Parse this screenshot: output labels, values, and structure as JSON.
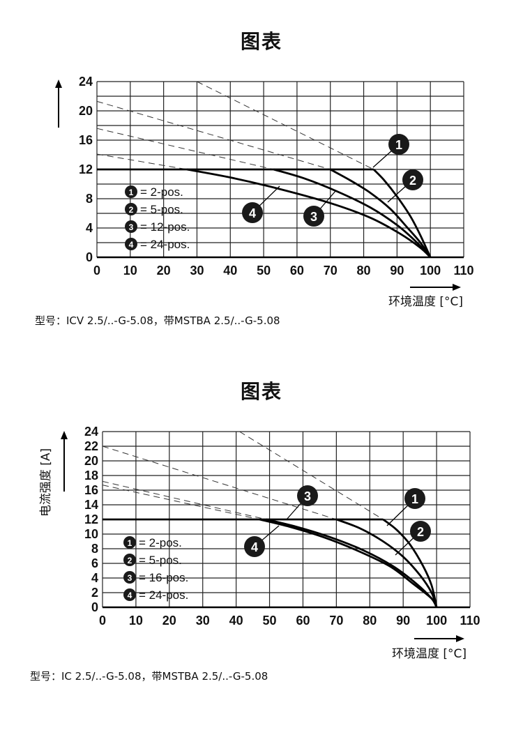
{
  "chart_data": [
    {
      "type": "line",
      "title": "图表",
      "xlabel": "环境温度 [°C]",
      "ylabel": "",
      "xlim": [
        0,
        110
      ],
      "ylim": [
        0,
        24
      ],
      "x_ticks": [
        0,
        10,
        20,
        30,
        40,
        50,
        60,
        70,
        80,
        90,
        100,
        110
      ],
      "y_ticks": [
        0,
        4,
        8,
        12,
        16,
        20,
        24
      ],
      "grid": true,
      "legend_position": "bottom-left",
      "current_limit": 12,
      "series": [
        {
          "name": "2-pos.",
          "marker": "1",
          "values": [
            [
              83,
              12
            ],
            [
              86,
              10.6
            ],
            [
              90,
              8.3
            ],
            [
              94,
              5.6
            ],
            [
              97,
              3.0
            ],
            [
              100,
              0
            ]
          ],
          "derating_reference": [
            [
              30,
              24
            ],
            [
              83,
              12
            ]
          ]
        },
        {
          "name": "5-pos.",
          "marker": "2",
          "values": [
            [
              70,
              12
            ],
            [
              76,
              10.5
            ],
            [
              82,
              8.8
            ],
            [
              88,
              6.6
            ],
            [
              93,
              4.1
            ],
            [
              97,
              2.0
            ],
            [
              100,
              0
            ]
          ],
          "derating_reference": [
            [
              0,
              21.3
            ],
            [
              70,
              12
            ]
          ]
        },
        {
          "name": "12-pos.",
          "marker": "3",
          "values": [
            [
              53,
              12
            ],
            [
              62,
              10.8
            ],
            [
              72,
              9.0
            ],
            [
              82,
              6.8
            ],
            [
              90,
              4.4
            ],
            [
              96,
              2.0
            ],
            [
              100,
              0
            ]
          ],
          "derating_reference": [
            [
              0,
              17.6
            ],
            [
              53,
              12
            ]
          ]
        },
        {
          "name": "24-pos.",
          "marker": "4",
          "values": [
            [
              27,
              12
            ],
            [
              40,
              10.9
            ],
            [
              55,
              9.3
            ],
            [
              70,
              7.4
            ],
            [
              82,
              5.4
            ],
            [
              91,
              3.2
            ],
            [
              97,
              1.3
            ],
            [
              100,
              0
            ]
          ],
          "derating_reference": [
            [
              0,
              14.1
            ],
            [
              27,
              12
            ]
          ]
        }
      ],
      "model": "型号：ICV 2.5/..-G-5.08，带MSTBA 2.5/..-G-5.08"
    },
    {
      "type": "line",
      "title": "图表",
      "xlabel": "环境温度 [°C]",
      "ylabel": "电流强度 [A]",
      "xlim": [
        0,
        110
      ],
      "ylim": [
        0,
        24
      ],
      "x_ticks": [
        0,
        10,
        20,
        30,
        40,
        50,
        60,
        70,
        80,
        90,
        100,
        110
      ],
      "y_ticks": [
        0,
        2,
        4,
        6,
        8,
        10,
        12,
        14,
        16,
        18,
        20,
        22,
        24
      ],
      "grid": true,
      "legend_position": "bottom-left",
      "current_limit": 12,
      "series": [
        {
          "name": "2-pos.",
          "marker": "1",
          "values": [
            [
              84,
              12
            ],
            [
              88,
              10.6
            ],
            [
              92,
              8.6
            ],
            [
              96,
              5.6
            ],
            [
              98.5,
              3.0
            ],
            [
              100,
              0
            ]
          ],
          "derating_reference": [
            [
              41,
              24
            ],
            [
              84,
              12
            ]
          ]
        },
        {
          "name": "5-pos.",
          "marker": "2",
          "values": [
            [
              70,
              12
            ],
            [
              77,
              10.8
            ],
            [
              84,
              9.0
            ],
            [
              90,
              6.9
            ],
            [
              95,
              4.4
            ],
            [
              98.5,
              2.0
            ],
            [
              100,
              0
            ]
          ],
          "derating_reference": [
            [
              0,
              22
            ],
            [
              70,
              12
            ]
          ]
        },
        {
          "name": "16-pos.",
          "marker": "3",
          "values": [
            [
              49,
              12
            ],
            [
              58,
              11.0
            ],
            [
              68,
              9.6
            ],
            [
              78,
              7.8
            ],
            [
              87,
              5.6
            ],
            [
              94,
              3.2
            ],
            [
              98.5,
              1.2
            ],
            [
              100,
              0
            ]
          ],
          "derating_reference": [
            [
              0,
              17.2
            ],
            [
              49,
              12
            ]
          ]
        },
        {
          "name": "24-pos.",
          "marker": "4",
          "values": [
            [
              47,
              12
            ],
            [
              56,
              11.0
            ],
            [
              66,
              9.6
            ],
            [
              76,
              7.8
            ],
            [
              86,
              5.6
            ],
            [
              93,
              3.2
            ],
            [
              98.5,
              1.2
            ],
            [
              100,
              0
            ]
          ],
          "derating_reference": [
            [
              0,
              16.7
            ],
            [
              47,
              12
            ]
          ]
        }
      ],
      "model": "型号：IC 2.5/..-G-5.08，带MSTBA 2.5/..-G-5.08"
    }
  ]
}
